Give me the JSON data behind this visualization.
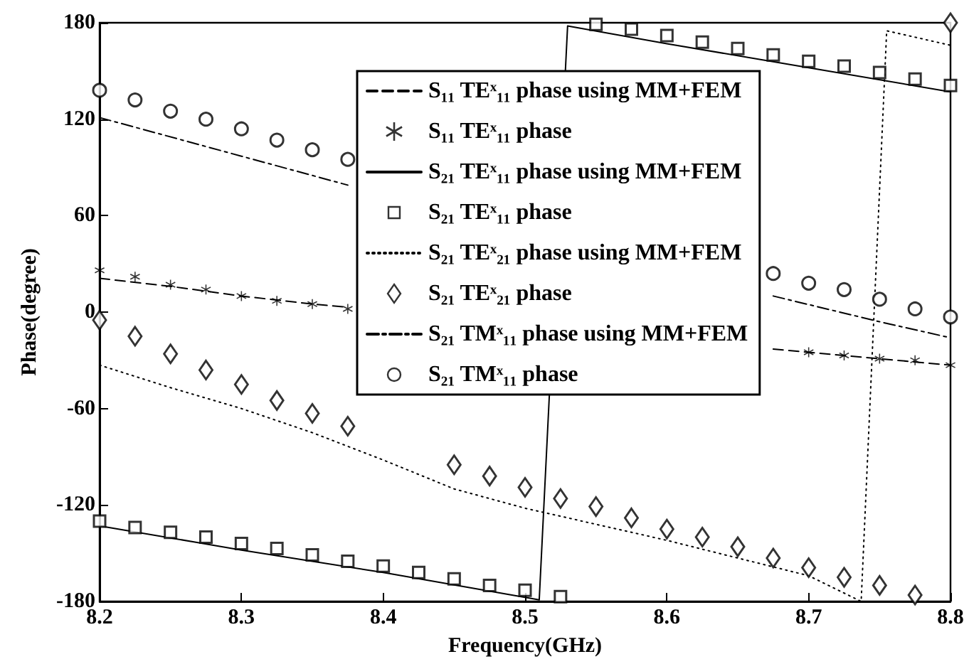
{
  "chart_data": {
    "type": "line",
    "xlabel": "Frequency(GHz)",
    "ylabel": "Phase(degree)",
    "xlim": [
      8.2,
      8.8
    ],
    "xticks": [
      8.2,
      8.3,
      8.4,
      8.5,
      8.6,
      8.7,
      8.8
    ],
    "ylim": [
      -180,
      180
    ],
    "yticks": [
      -180,
      -120,
      -60,
      0,
      60,
      120,
      180
    ],
    "grid": false,
    "legend": "top",
    "series": [
      {
        "name": "S₁₁ TEˣ₁₁ phase using MM+FEM",
        "type": "line",
        "line_style": "dashed",
        "marker": "none",
        "color": "#000000",
        "x": [
          8.2,
          8.25,
          8.3,
          8.35,
          8.375,
          8.5,
          8.675,
          8.7,
          8.75,
          8.8
        ],
        "values": [
          21,
          16,
          10,
          5,
          3,
          null,
          -23,
          -25,
          -29,
          -33
        ]
      },
      {
        "name": "S₁₁ TEˣ₁₁ phase",
        "type": "scatter",
        "marker": "star",
        "color": "#000000",
        "x": [
          8.2,
          8.225,
          8.25,
          8.275,
          8.3,
          8.325,
          8.35,
          8.375,
          8.4,
          8.425,
          8.45,
          8.475,
          8.5,
          8.525,
          8.55,
          8.575,
          8.6,
          8.625,
          8.65,
          8.675,
          8.7,
          8.725,
          8.75,
          8.775,
          8.8
        ],
        "values": [
          26,
          22,
          17,
          14,
          10,
          7,
          5,
          2,
          null,
          null,
          null,
          null,
          null,
          null,
          null,
          null,
          null,
          null,
          null,
          null,
          -25,
          -27,
          -29,
          -30,
          -33
        ]
      },
      {
        "name": "S₂₁ TEˣ₁₁ phase using MM+FEM",
        "type": "line",
        "line_style": "solid",
        "marker": "none",
        "color": "#000000",
        "x": [
          8.2,
          8.3,
          8.4,
          8.51,
          8.53,
          8.6,
          8.7,
          8.8
        ],
        "values": [
          -133,
          -148,
          -162,
          -179,
          178,
          167,
          152,
          137
        ]
      },
      {
        "name": "S₂₁ TEˣ₁₁ phase",
        "type": "scatter",
        "marker": "square",
        "color": "#000000",
        "x": [
          8.2,
          8.225,
          8.25,
          8.275,
          8.3,
          8.325,
          8.35,
          8.375,
          8.4,
          8.425,
          8.45,
          8.475,
          8.5,
          8.525,
          8.55,
          8.575,
          8.6,
          8.625,
          8.65,
          8.675,
          8.7,
          8.725,
          8.75,
          8.775,
          8.8
        ],
        "values": [
          -130,
          -134,
          -137,
          -140,
          -144,
          -147,
          -151,
          -155,
          -158,
          -162,
          -166,
          -170,
          -173,
          -177,
          179,
          176,
          172,
          168,
          164,
          160,
          156,
          153,
          149,
          145,
          141
        ]
      },
      {
        "name": "S₂₁ TEˣ₂₁ phase using MM+FEM",
        "type": "line",
        "line_style": "dotted",
        "marker": "none",
        "color": "#000000",
        "x": [
          8.2,
          8.25,
          8.3,
          8.35,
          8.4,
          8.45,
          8.5,
          8.55,
          8.6,
          8.65,
          8.7,
          8.737,
          8.755,
          8.8
        ],
        "values": [
          -33,
          -47,
          -60,
          -75,
          -92,
          -110,
          -122,
          -132,
          -142,
          -153,
          -164,
          -180,
          175,
          166
        ]
      },
      {
        "name": "S₂₁ TEˣ₂₁ phase",
        "type": "scatter",
        "marker": "diamond",
        "color": "#000000",
        "x": [
          8.2,
          8.225,
          8.25,
          8.275,
          8.3,
          8.325,
          8.35,
          8.375,
          8.4,
          8.425,
          8.45,
          8.475,
          8.5,
          8.525,
          8.55,
          8.575,
          8.6,
          8.625,
          8.65,
          8.675,
          8.7,
          8.725,
          8.75,
          8.775,
          8.8
        ],
        "values": [
          -5,
          -15,
          -26,
          -36,
          -45,
          -55,
          -63,
          -71,
          null,
          null,
          -95,
          -102,
          -109,
          -116,
          -121,
          -128,
          -135,
          -140,
          -146,
          -153,
          -159,
          -165,
          -170,
          -176,
          180
        ]
      },
      {
        "name": "S₂₁ TMˣ₁₁ phase using MM+FEM",
        "type": "line",
        "line_style": "dashdot",
        "marker": "none",
        "color": "#000000",
        "x": [
          8.2,
          8.3,
          8.375,
          8.5,
          8.675,
          8.75,
          8.8
        ],
        "values": [
          121,
          97,
          79,
          null,
          10,
          -6,
          -16
        ]
      },
      {
        "name": "S₂₁ TMˣ₁₁ phase",
        "type": "scatter",
        "marker": "circle",
        "color": "#000000",
        "x": [
          8.2,
          8.225,
          8.25,
          8.275,
          8.3,
          8.325,
          8.35,
          8.375,
          8.4,
          8.425,
          8.45,
          8.475,
          8.5,
          8.525,
          8.55,
          8.575,
          8.6,
          8.625,
          8.65,
          8.675,
          8.7,
          8.725,
          8.75,
          8.775,
          8.8
        ],
        "values": [
          138,
          132,
          125,
          120,
          114,
          107,
          101,
          95,
          null,
          null,
          null,
          null,
          null,
          null,
          null,
          null,
          null,
          null,
          null,
          24,
          18,
          14,
          8,
          2,
          -3
        ]
      }
    ]
  }
}
